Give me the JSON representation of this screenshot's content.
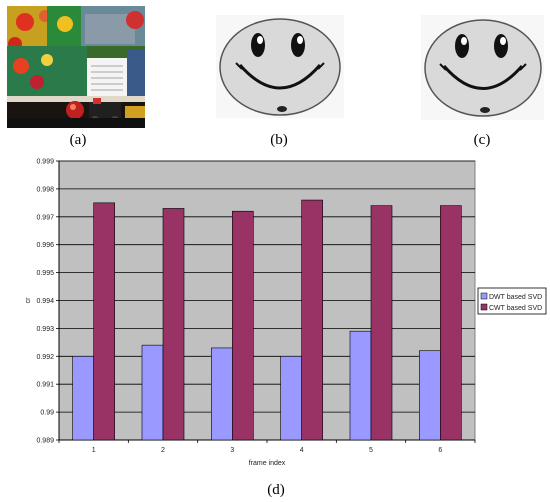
{
  "captions": {
    "a": "(a)",
    "b": "(b)",
    "c": "(c)",
    "d": "(d)"
  },
  "chart_data": {
    "type": "bar",
    "categories": [
      "1",
      "2",
      "3",
      "4",
      "5",
      "6"
    ],
    "series": [
      {
        "name": "DWT based SVD",
        "color": "#9999ff",
        "values": [
          0.992,
          0.9924,
          0.9923,
          0.992,
          0.9929,
          0.9922
        ]
      },
      {
        "name": "CWT based SVD",
        "color": "#993366",
        "values": [
          0.9975,
          0.9973,
          0.9972,
          0.9976,
          0.9974,
          0.9974
        ]
      }
    ],
    "xlabel": "frame index",
    "ylabel": "cr",
    "ylim": [
      0.989,
      0.999
    ],
    "yticks": [
      "0.989",
      "0.99",
      "0.991",
      "0.992",
      "0.993",
      "0.994",
      "0.995",
      "0.996",
      "0.997",
      "0.998",
      "0.999"
    ],
    "grid": true,
    "plot_background": "#c0c0c0",
    "legend_position": "right"
  }
}
